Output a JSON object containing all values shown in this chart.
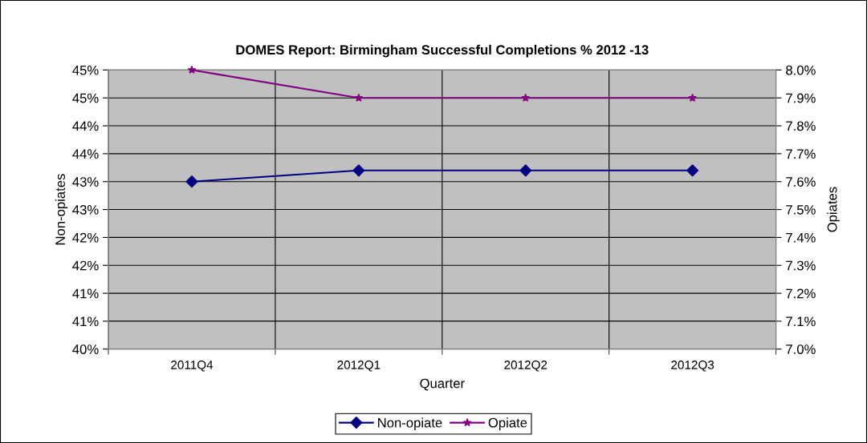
{
  "chart_data": {
    "type": "line",
    "title": "DOMES Report: Birmingham Successful Completions % 2012 -13",
    "categories": [
      "2011Q4",
      "2012Q1",
      "2012Q2",
      "2012Q3"
    ],
    "xlabel": "Quarter",
    "ylabel": "Non-opiates",
    "y2label": "Opiates",
    "series": [
      {
        "name": "Non-opiate",
        "color": "#000080",
        "marker": "diamond",
        "values": [
          43.0,
          43.2,
          43.2,
          43.2
        ]
      },
      {
        "name": "Opiate",
        "color": "#800080",
        "marker": "star",
        "axis": "y2",
        "values": [
          8.0,
          7.9,
          7.9,
          7.9
        ]
      }
    ],
    "ylim": [
      40,
      45
    ],
    "yticks": [
      {
        "value": 40,
        "label": "40%"
      },
      {
        "value": 40.5,
        "label": "41%"
      },
      {
        "value": 41,
        "label": "41%"
      },
      {
        "value": 41.5,
        "label": "42%"
      },
      {
        "value": 42,
        "label": "42%"
      },
      {
        "value": 42.5,
        "label": "43%"
      },
      {
        "value": 43,
        "label": "43%"
      },
      {
        "value": 43.5,
        "label": "44%"
      },
      {
        "value": 44,
        "label": "44%"
      },
      {
        "value": 44.5,
        "label": "45%"
      },
      {
        "value": 45,
        "label": "45%"
      }
    ],
    "y2lim": [
      7.0,
      8.0
    ],
    "y2ticks": [
      {
        "value": 7.0,
        "label": "7.0%"
      },
      {
        "value": 7.1,
        "label": "7.1%"
      },
      {
        "value": 7.2,
        "label": "7.2%"
      },
      {
        "value": 7.3,
        "label": "7.3%"
      },
      {
        "value": 7.4,
        "label": "7.4%"
      },
      {
        "value": 7.5,
        "label": "7.5%"
      },
      {
        "value": 7.6,
        "label": "7.6%"
      },
      {
        "value": 7.7,
        "label": "7.7%"
      },
      {
        "value": 7.8,
        "label": "7.8%"
      },
      {
        "value": 7.9,
        "label": "7.9%"
      },
      {
        "value": 8.0,
        "label": "8.0%"
      }
    ],
    "grid": true,
    "legend": "bottom",
    "line_style": "solid"
  }
}
